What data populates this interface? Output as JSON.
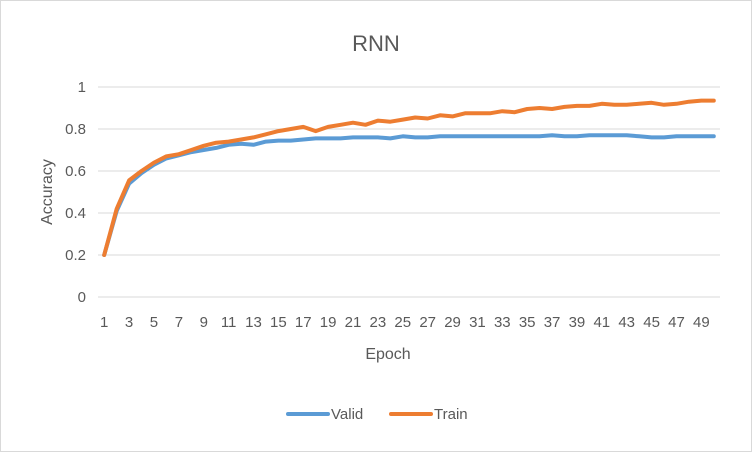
{
  "chart_data": {
    "type": "line",
    "title": "RNN",
    "xlabel": "Epoch",
    "ylabel": "Accuracy",
    "ylim": [
      0,
      1
    ],
    "yticks": [
      0,
      0.2,
      0.4,
      0.6,
      0.8,
      1
    ],
    "ytick_labels": [
      "0",
      "0.2",
      "0.4",
      "0.6",
      "0.8",
      "1"
    ],
    "x": [
      1,
      2,
      3,
      4,
      5,
      6,
      7,
      8,
      9,
      10,
      11,
      12,
      13,
      14,
      15,
      16,
      17,
      18,
      19,
      20,
      21,
      22,
      23,
      24,
      25,
      26,
      27,
      28,
      29,
      30,
      31,
      32,
      33,
      34,
      35,
      36,
      37,
      38,
      39,
      40,
      41,
      42,
      43,
      44,
      45,
      46,
      47,
      48,
      49,
      50
    ],
    "xtick_labels": [
      "1",
      "3",
      "5",
      "7",
      "9",
      "11",
      "13",
      "15",
      "17",
      "19",
      "21",
      "23",
      "25",
      "27",
      "29",
      "31",
      "33",
      "35",
      "37",
      "39",
      "41",
      "43",
      "45",
      "47",
      "49"
    ],
    "grid": true,
    "legend_position": "bottom",
    "series": [
      {
        "name": "Valid",
        "color": "#5b9bd5",
        "values": [
          0.2,
          0.41,
          0.54,
          0.59,
          0.63,
          0.66,
          0.675,
          0.69,
          0.7,
          0.71,
          0.725,
          0.73,
          0.725,
          0.74,
          0.745,
          0.745,
          0.75,
          0.755,
          0.755,
          0.755,
          0.76,
          0.76,
          0.76,
          0.755,
          0.765,
          0.76,
          0.76,
          0.765,
          0.765,
          0.765,
          0.765,
          0.765,
          0.765,
          0.765,
          0.765,
          0.765,
          0.77,
          0.765,
          0.765,
          0.77,
          0.77,
          0.77,
          0.77,
          0.765,
          0.76,
          0.76,
          0.765,
          0.765,
          0.765,
          0.765
        ]
      },
      {
        "name": "Train",
        "color": "#ed7d31",
        "values": [
          0.2,
          0.42,
          0.555,
          0.6,
          0.64,
          0.67,
          0.68,
          0.7,
          0.72,
          0.735,
          0.74,
          0.75,
          0.76,
          0.775,
          0.79,
          0.8,
          0.81,
          0.79,
          0.81,
          0.82,
          0.83,
          0.82,
          0.84,
          0.835,
          0.845,
          0.855,
          0.85,
          0.865,
          0.86,
          0.875,
          0.875,
          0.875,
          0.885,
          0.88,
          0.895,
          0.9,
          0.895,
          0.905,
          0.91,
          0.91,
          0.92,
          0.915,
          0.915,
          0.92,
          0.925,
          0.915,
          0.92,
          0.93,
          0.935,
          0.935
        ]
      }
    ]
  }
}
